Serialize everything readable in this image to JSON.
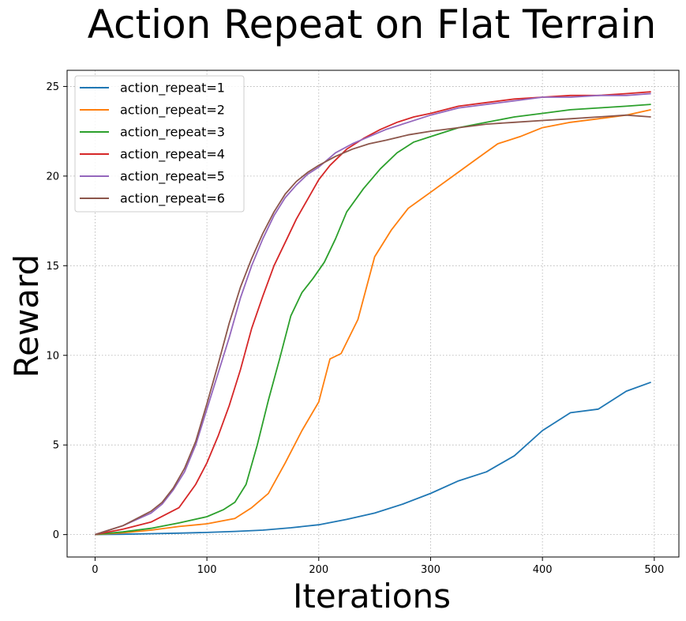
{
  "chart_data": {
    "type": "line",
    "title": "Action Repeat on Flat Terrain",
    "xlabel": "Iterations",
    "ylabel": "Reward",
    "xlim": [
      -25,
      522
    ],
    "ylim": [
      -1.25,
      25.9
    ],
    "xticks": [
      0,
      100,
      200,
      300,
      400,
      500
    ],
    "yticks": [
      0,
      5,
      10,
      15,
      20,
      25
    ],
    "grid": true,
    "legend_position": "top-left",
    "series": [
      {
        "name": "action_repeat=1",
        "color": "#1f77b4",
        "x": [
          0,
          25,
          50,
          75,
          100,
          125,
          150,
          175,
          200,
          225,
          250,
          275,
          300,
          325,
          350,
          375,
          400,
          425,
          450,
          475,
          497
        ],
        "y": [
          0.0,
          0.02,
          0.05,
          0.08,
          0.12,
          0.18,
          0.25,
          0.38,
          0.55,
          0.85,
          1.2,
          1.7,
          2.3,
          3.0,
          3.5,
          4.4,
          5.8,
          6.8,
          7.0,
          8.0,
          8.5
        ]
      },
      {
        "name": "action_repeat=2",
        "color": "#ff7f0e",
        "x": [
          0,
          25,
          50,
          75,
          100,
          125,
          140,
          155,
          170,
          185,
          200,
          210,
          220,
          235,
          250,
          265,
          280,
          300,
          320,
          340,
          360,
          380,
          400,
          425,
          450,
          475,
          497
        ],
        "y": [
          0.0,
          0.1,
          0.25,
          0.45,
          0.6,
          0.9,
          1.5,
          2.3,
          4.0,
          5.8,
          7.4,
          9.8,
          10.1,
          12.0,
          15.5,
          17.0,
          18.2,
          19.1,
          20.0,
          20.9,
          21.8,
          22.2,
          22.7,
          23.0,
          23.2,
          23.4,
          23.7
        ]
      },
      {
        "name": "action_repeat=3",
        "color": "#2ca02c",
        "x": [
          0,
          25,
          50,
          75,
          100,
          115,
          125,
          135,
          145,
          155,
          165,
          175,
          185,
          195,
          205,
          215,
          225,
          240,
          255,
          270,
          285,
          300,
          325,
          350,
          375,
          400,
          425,
          450,
          475,
          497
        ],
        "y": [
          0.0,
          0.15,
          0.35,
          0.65,
          1.0,
          1.4,
          1.8,
          2.8,
          5.0,
          7.5,
          9.8,
          12.2,
          13.5,
          14.3,
          15.2,
          16.5,
          18.0,
          19.3,
          20.4,
          21.3,
          21.9,
          22.2,
          22.7,
          23.0,
          23.3,
          23.5,
          23.7,
          23.8,
          23.9,
          24.0
        ]
      },
      {
        "name": "action_repeat=4",
        "color": "#d62728",
        "x": [
          0,
          25,
          50,
          75,
          90,
          100,
          110,
          120,
          130,
          140,
          150,
          160,
          170,
          180,
          190,
          200,
          210,
          225,
          240,
          255,
          270,
          285,
          300,
          325,
          350,
          375,
          400,
          425,
          450,
          475,
          497
        ],
        "y": [
          0.0,
          0.3,
          0.7,
          1.5,
          2.8,
          4.0,
          5.5,
          7.2,
          9.2,
          11.5,
          13.3,
          15.0,
          16.3,
          17.6,
          18.7,
          19.8,
          20.6,
          21.5,
          22.1,
          22.6,
          23.0,
          23.3,
          23.5,
          23.9,
          24.1,
          24.3,
          24.4,
          24.5,
          24.5,
          24.6,
          24.7
        ]
      },
      {
        "name": "action_repeat=5",
        "color": "#9467bd",
        "x": [
          0,
          25,
          50,
          60,
          70,
          80,
          90,
          100,
          110,
          120,
          130,
          140,
          150,
          160,
          170,
          180,
          190,
          200,
          215,
          230,
          245,
          260,
          280,
          300,
          325,
          350,
          375,
          400,
          425,
          450,
          475,
          497
        ],
        "y": [
          0.0,
          0.5,
          1.2,
          1.7,
          2.5,
          3.5,
          5.0,
          7.0,
          9.0,
          11.0,
          13.2,
          15.0,
          16.5,
          17.8,
          18.8,
          19.5,
          20.1,
          20.5,
          21.3,
          21.8,
          22.2,
          22.6,
          23.0,
          23.4,
          23.8,
          24.0,
          24.2,
          24.4,
          24.4,
          24.5,
          24.5,
          24.6
        ]
      },
      {
        "name": "action_repeat=6",
        "color": "#8c564b",
        "x": [
          0,
          25,
          50,
          60,
          70,
          80,
          90,
          100,
          110,
          120,
          130,
          140,
          150,
          160,
          170,
          180,
          190,
          200,
          215,
          230,
          245,
          260,
          280,
          300,
          325,
          350,
          375,
          400,
          425,
          450,
          475,
          497
        ],
        "y": [
          0.0,
          0.5,
          1.3,
          1.8,
          2.6,
          3.7,
          5.2,
          7.3,
          9.5,
          11.8,
          13.8,
          15.4,
          16.8,
          18.0,
          19.0,
          19.7,
          20.2,
          20.6,
          21.1,
          21.5,
          21.8,
          22.0,
          22.3,
          22.5,
          22.7,
          22.9,
          23.0,
          23.1,
          23.2,
          23.3,
          23.4,
          23.3
        ]
      }
    ]
  }
}
